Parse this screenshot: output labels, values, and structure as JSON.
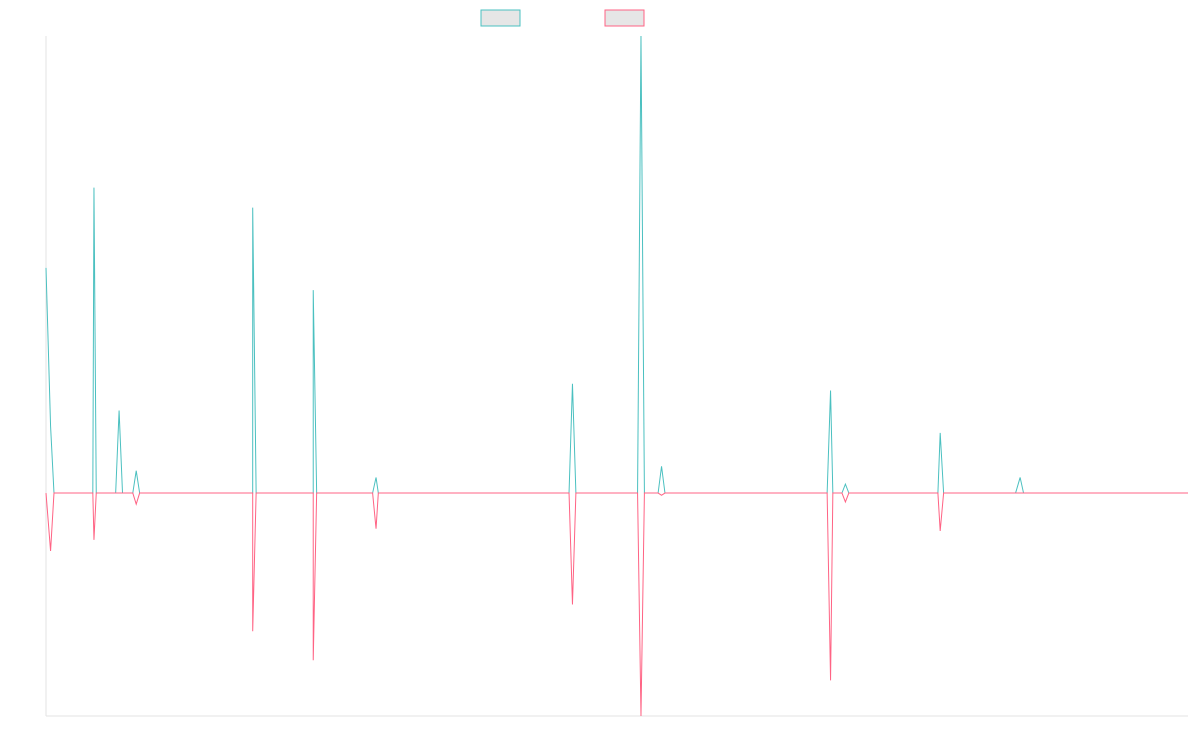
{
  "chart_data": {
    "type": "line",
    "title": "",
    "xlabel": "",
    "ylabel": "",
    "grid": false,
    "legend_position": "top-center",
    "ylim": [
      -1,
      2.05
    ],
    "xlim": [
      0,
      100
    ],
    "series": [
      {
        "name": "",
        "color": "#4bc0c0",
        "legend_fill": "#e6e6e6",
        "points": [
          [
            0,
            1.01
          ],
          [
            0.4,
            0.3
          ],
          [
            0.7,
            0
          ],
          [
            4.1,
            0
          ],
          [
            4.2,
            1.37
          ],
          [
            4.4,
            0
          ],
          [
            6.1,
            0
          ],
          [
            6.4,
            0.37
          ],
          [
            6.7,
            0
          ],
          [
            7.6,
            0
          ],
          [
            7.9,
            0.1
          ],
          [
            8.2,
            0
          ],
          [
            18.1,
            0
          ],
          [
            18.1,
            1.28
          ],
          [
            18.4,
            0
          ],
          [
            23.4,
            0
          ],
          [
            23.4,
            0.91
          ],
          [
            23.7,
            0
          ],
          [
            28.6,
            0
          ],
          [
            28.9,
            0.07
          ],
          [
            29.1,
            0
          ],
          [
            45.8,
            0
          ],
          [
            46.1,
            0.49
          ],
          [
            46.4,
            0
          ],
          [
            51.8,
            0
          ],
          [
            52.1,
            2.05
          ],
          [
            52.4,
            0
          ],
          [
            53.6,
            0
          ],
          [
            53.9,
            0.12
          ],
          [
            54.2,
            0
          ],
          [
            68.4,
            0
          ],
          [
            68.7,
            0.46
          ],
          [
            68.9,
            0
          ],
          [
            69.7,
            0
          ],
          [
            70.0,
            0.04
          ],
          [
            70.3,
            0
          ],
          [
            78.1,
            0
          ],
          [
            78.3,
            0.27
          ],
          [
            78.6,
            0
          ],
          [
            84.9,
            0
          ],
          [
            85.3,
            0.07
          ],
          [
            85.6,
            0
          ],
          [
            100,
            0
          ]
        ]
      },
      {
        "name": "",
        "color": "#ff6384",
        "legend_fill": "#e6e6e6",
        "points": [
          [
            0,
            0
          ],
          [
            0.4,
            -0.26
          ],
          [
            0.7,
            0
          ],
          [
            4.1,
            0
          ],
          [
            4.2,
            -0.21
          ],
          [
            4.4,
            0
          ],
          [
            7.6,
            0
          ],
          [
            7.9,
            -0.05
          ],
          [
            8.2,
            0
          ],
          [
            18.1,
            0
          ],
          [
            18.1,
            -0.62
          ],
          [
            18.4,
            0
          ],
          [
            23.4,
            0
          ],
          [
            23.4,
            -0.75
          ],
          [
            23.7,
            0
          ],
          [
            28.6,
            0
          ],
          [
            28.9,
            -0.16
          ],
          [
            29.1,
            0
          ],
          [
            45.8,
            0
          ],
          [
            46.1,
            -0.5
          ],
          [
            46.4,
            0
          ],
          [
            51.8,
            0
          ],
          [
            52.1,
            -1.0
          ],
          [
            52.4,
            0
          ],
          [
            53.6,
            0
          ],
          [
            53.9,
            -0.01
          ],
          [
            54.2,
            0
          ],
          [
            68.4,
            0
          ],
          [
            68.7,
            -0.84
          ],
          [
            68.9,
            0
          ],
          [
            69.7,
            0
          ],
          [
            70.0,
            -0.04
          ],
          [
            70.3,
            0
          ],
          [
            78.1,
            0
          ],
          [
            78.3,
            -0.17
          ],
          [
            78.6,
            0
          ],
          [
            100,
            0
          ]
        ]
      }
    ]
  }
}
